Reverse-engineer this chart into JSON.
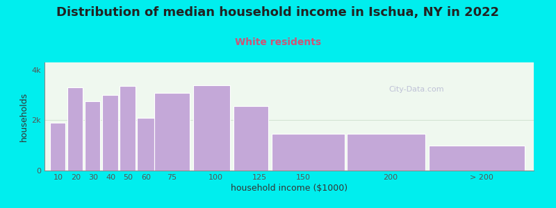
{
  "title": "Distribution of median household income in Ischua, NY in 2022",
  "subtitle": "White residents",
  "xlabel": "household income ($1000)",
  "ylabel": "households",
  "background_color": "#00EEEE",
  "plot_bg_color": "#EFF8EF",
  "bar_color": "#C4A8D8",
  "bar_edge_color": "#FFFFFF",
  "categories": [
    "10",
    "20",
    "30",
    "40",
    "50",
    "60",
    "75",
    "100",
    "125",
    "150",
    "200",
    "> 200"
  ],
  "bar_lefts": [
    5,
    15,
    25,
    35,
    45,
    55,
    65,
    87,
    110,
    132,
    175,
    222
  ],
  "bar_widths": [
    9,
    9,
    9,
    9,
    9,
    10,
    20,
    21,
    20,
    42,
    45,
    55
  ],
  "bar_heights": [
    1900,
    3300,
    2750,
    3000,
    3350,
    2100,
    3100,
    3400,
    2550,
    1450,
    1450,
    1000
  ],
  "xlim": [
    2,
    282
  ],
  "ylim": [
    0,
    4300
  ],
  "yticks": [
    0,
    2000,
    4000
  ],
  "ytick_labels": [
    "0",
    "2k",
    "4k"
  ],
  "xtick_positions": [
    10,
    20,
    30,
    40,
    50,
    60,
    75,
    100,
    125,
    150,
    200,
    252
  ],
  "xtick_labels": [
    "10",
    "20",
    "30",
    "40",
    "50",
    "60",
    "75",
    "100",
    "125",
    "150",
    "200",
    "> 200"
  ],
  "title_fontsize": 13,
  "subtitle_fontsize": 10,
  "axis_label_fontsize": 9,
  "tick_fontsize": 8,
  "subtitle_color": "#CC5577",
  "title_color": "#222222",
  "watermark_text": "City-Data.com",
  "watermark_color": "#AAAACC"
}
